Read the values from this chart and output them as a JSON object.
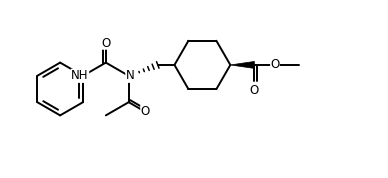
{
  "background_color": "#ffffff",
  "line_color": "#000000",
  "line_width": 1.4,
  "figsize": [
    3.88,
    1.78
  ],
  "dpi": 100,
  "xlim": [
    0,
    10
  ],
  "ylim": [
    0,
    4.58
  ]
}
